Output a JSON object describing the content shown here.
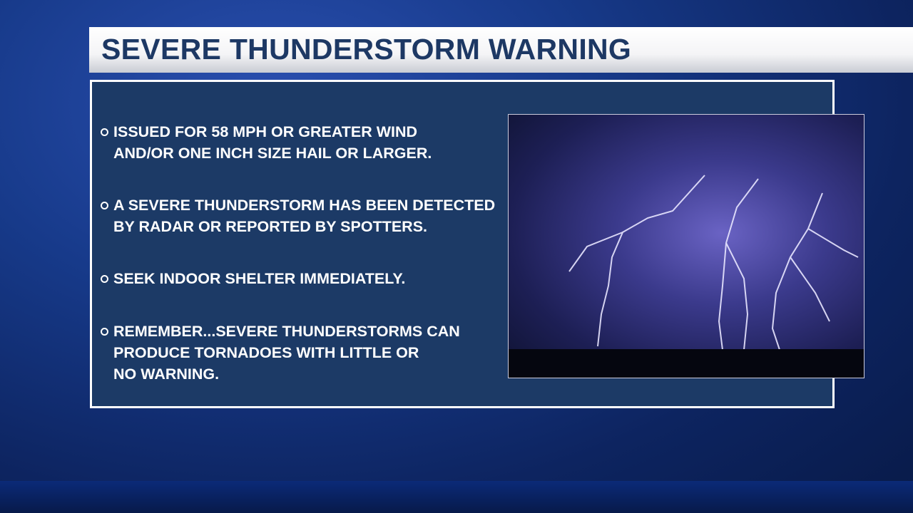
{
  "title": "SEVERE THUNDERSTORM WARNING",
  "bullets": [
    "ISSUED FOR 58 MPH OR GREATER WIND\nAND/OR ONE INCH SIZE HAIL OR LARGER.",
    "A SEVERE THUNDERSTORM HAS BEEN DETECTED\nBY RADAR OR REPORTED BY SPOTTERS.",
    "SEEK INDOOR SHELTER IMMEDIATELY.",
    "REMEMBER...SEVERE THUNDERSTORMS CAN\nPRODUCE TORNADOES WITH LITTLE OR\nNO WARNING."
  ],
  "colors": {
    "panel": "#1c3a66",
    "title_text": "#1d3864"
  },
  "image": "lightning-storm-photo"
}
